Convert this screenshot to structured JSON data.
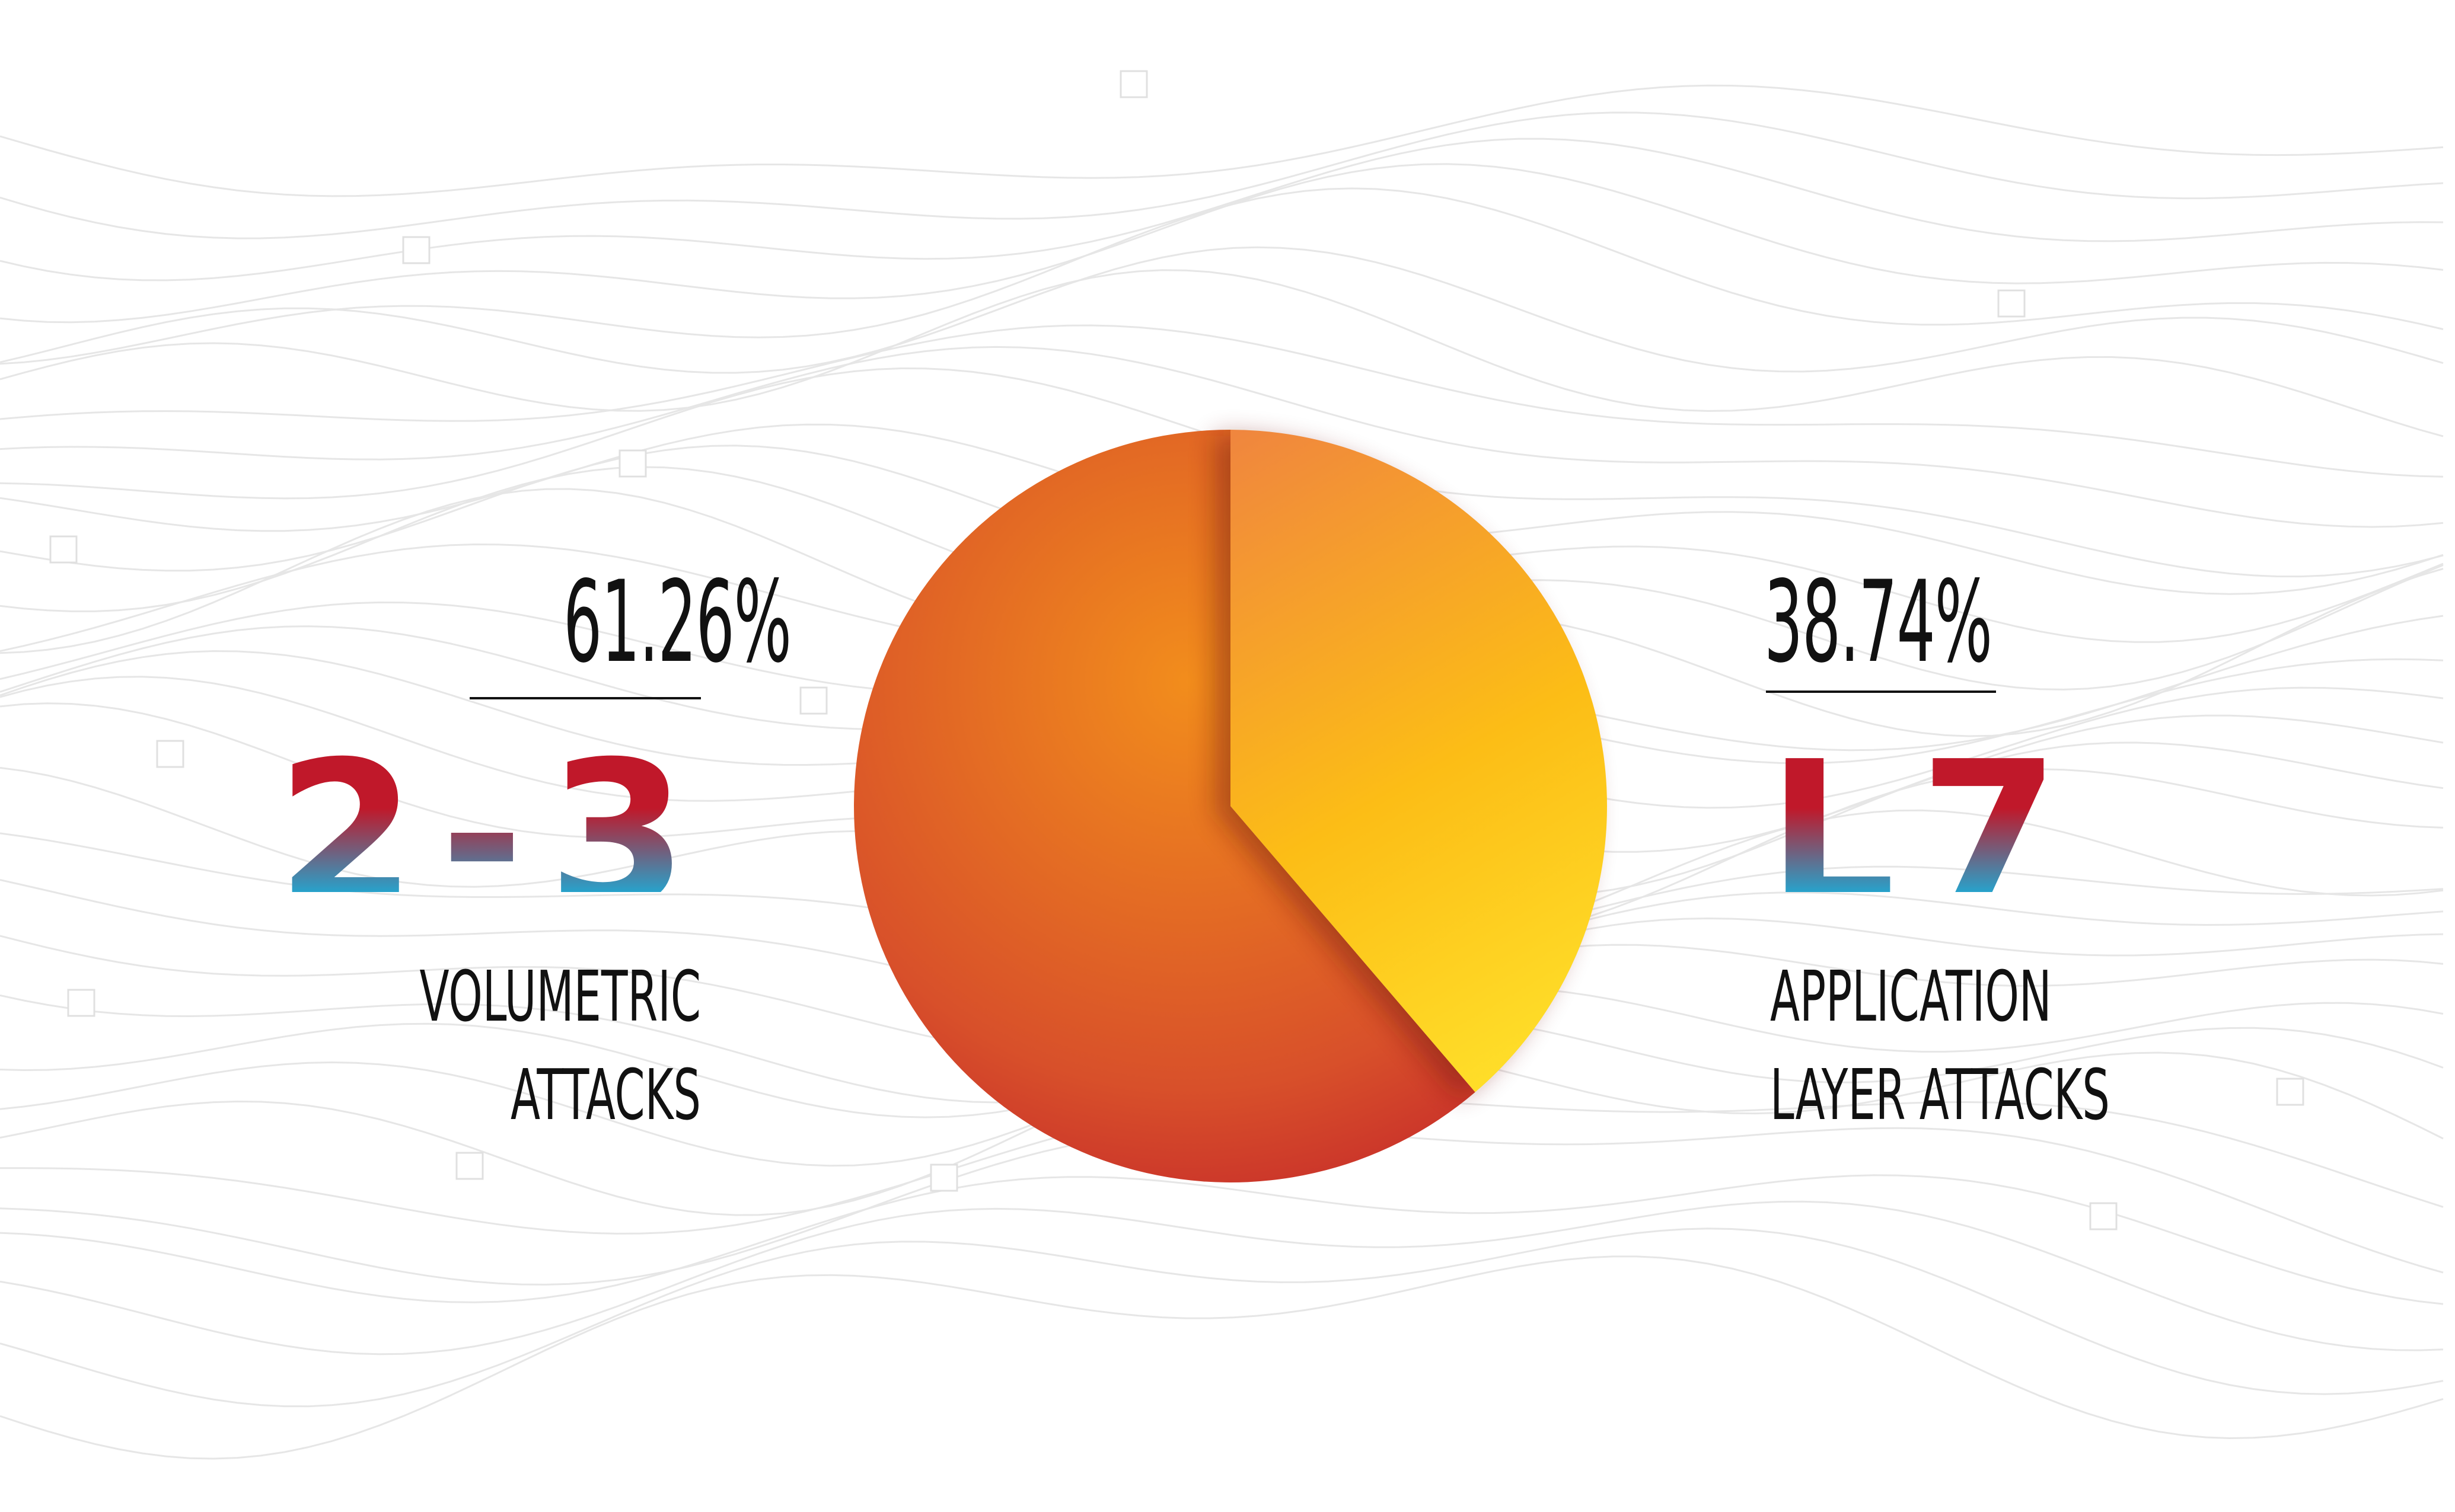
{
  "chart_data": {
    "type": "pie",
    "slices": [
      {
        "percent_label": "61.26%",
        "value": 61.26,
        "layer": "L2-3",
        "description": [
          "VOLUMETRIC",
          "ATTACKS"
        ]
      },
      {
        "percent_label": "38.74%",
        "value": 38.74,
        "layer": "L7",
        "description": [
          "APPLICATION",
          "LAYER ATTACKS"
        ]
      }
    ],
    "colors": {
      "large_slice_center": "#f08a1e",
      "large_slice_edge": "#c0202a",
      "small_slice_top": "#f08a40",
      "small_slice_bottom": "#ffd21a",
      "label_gradient_top": "#c0182a",
      "label_gradient_bottom": "#1ab2dc",
      "text": "#111111"
    }
  }
}
